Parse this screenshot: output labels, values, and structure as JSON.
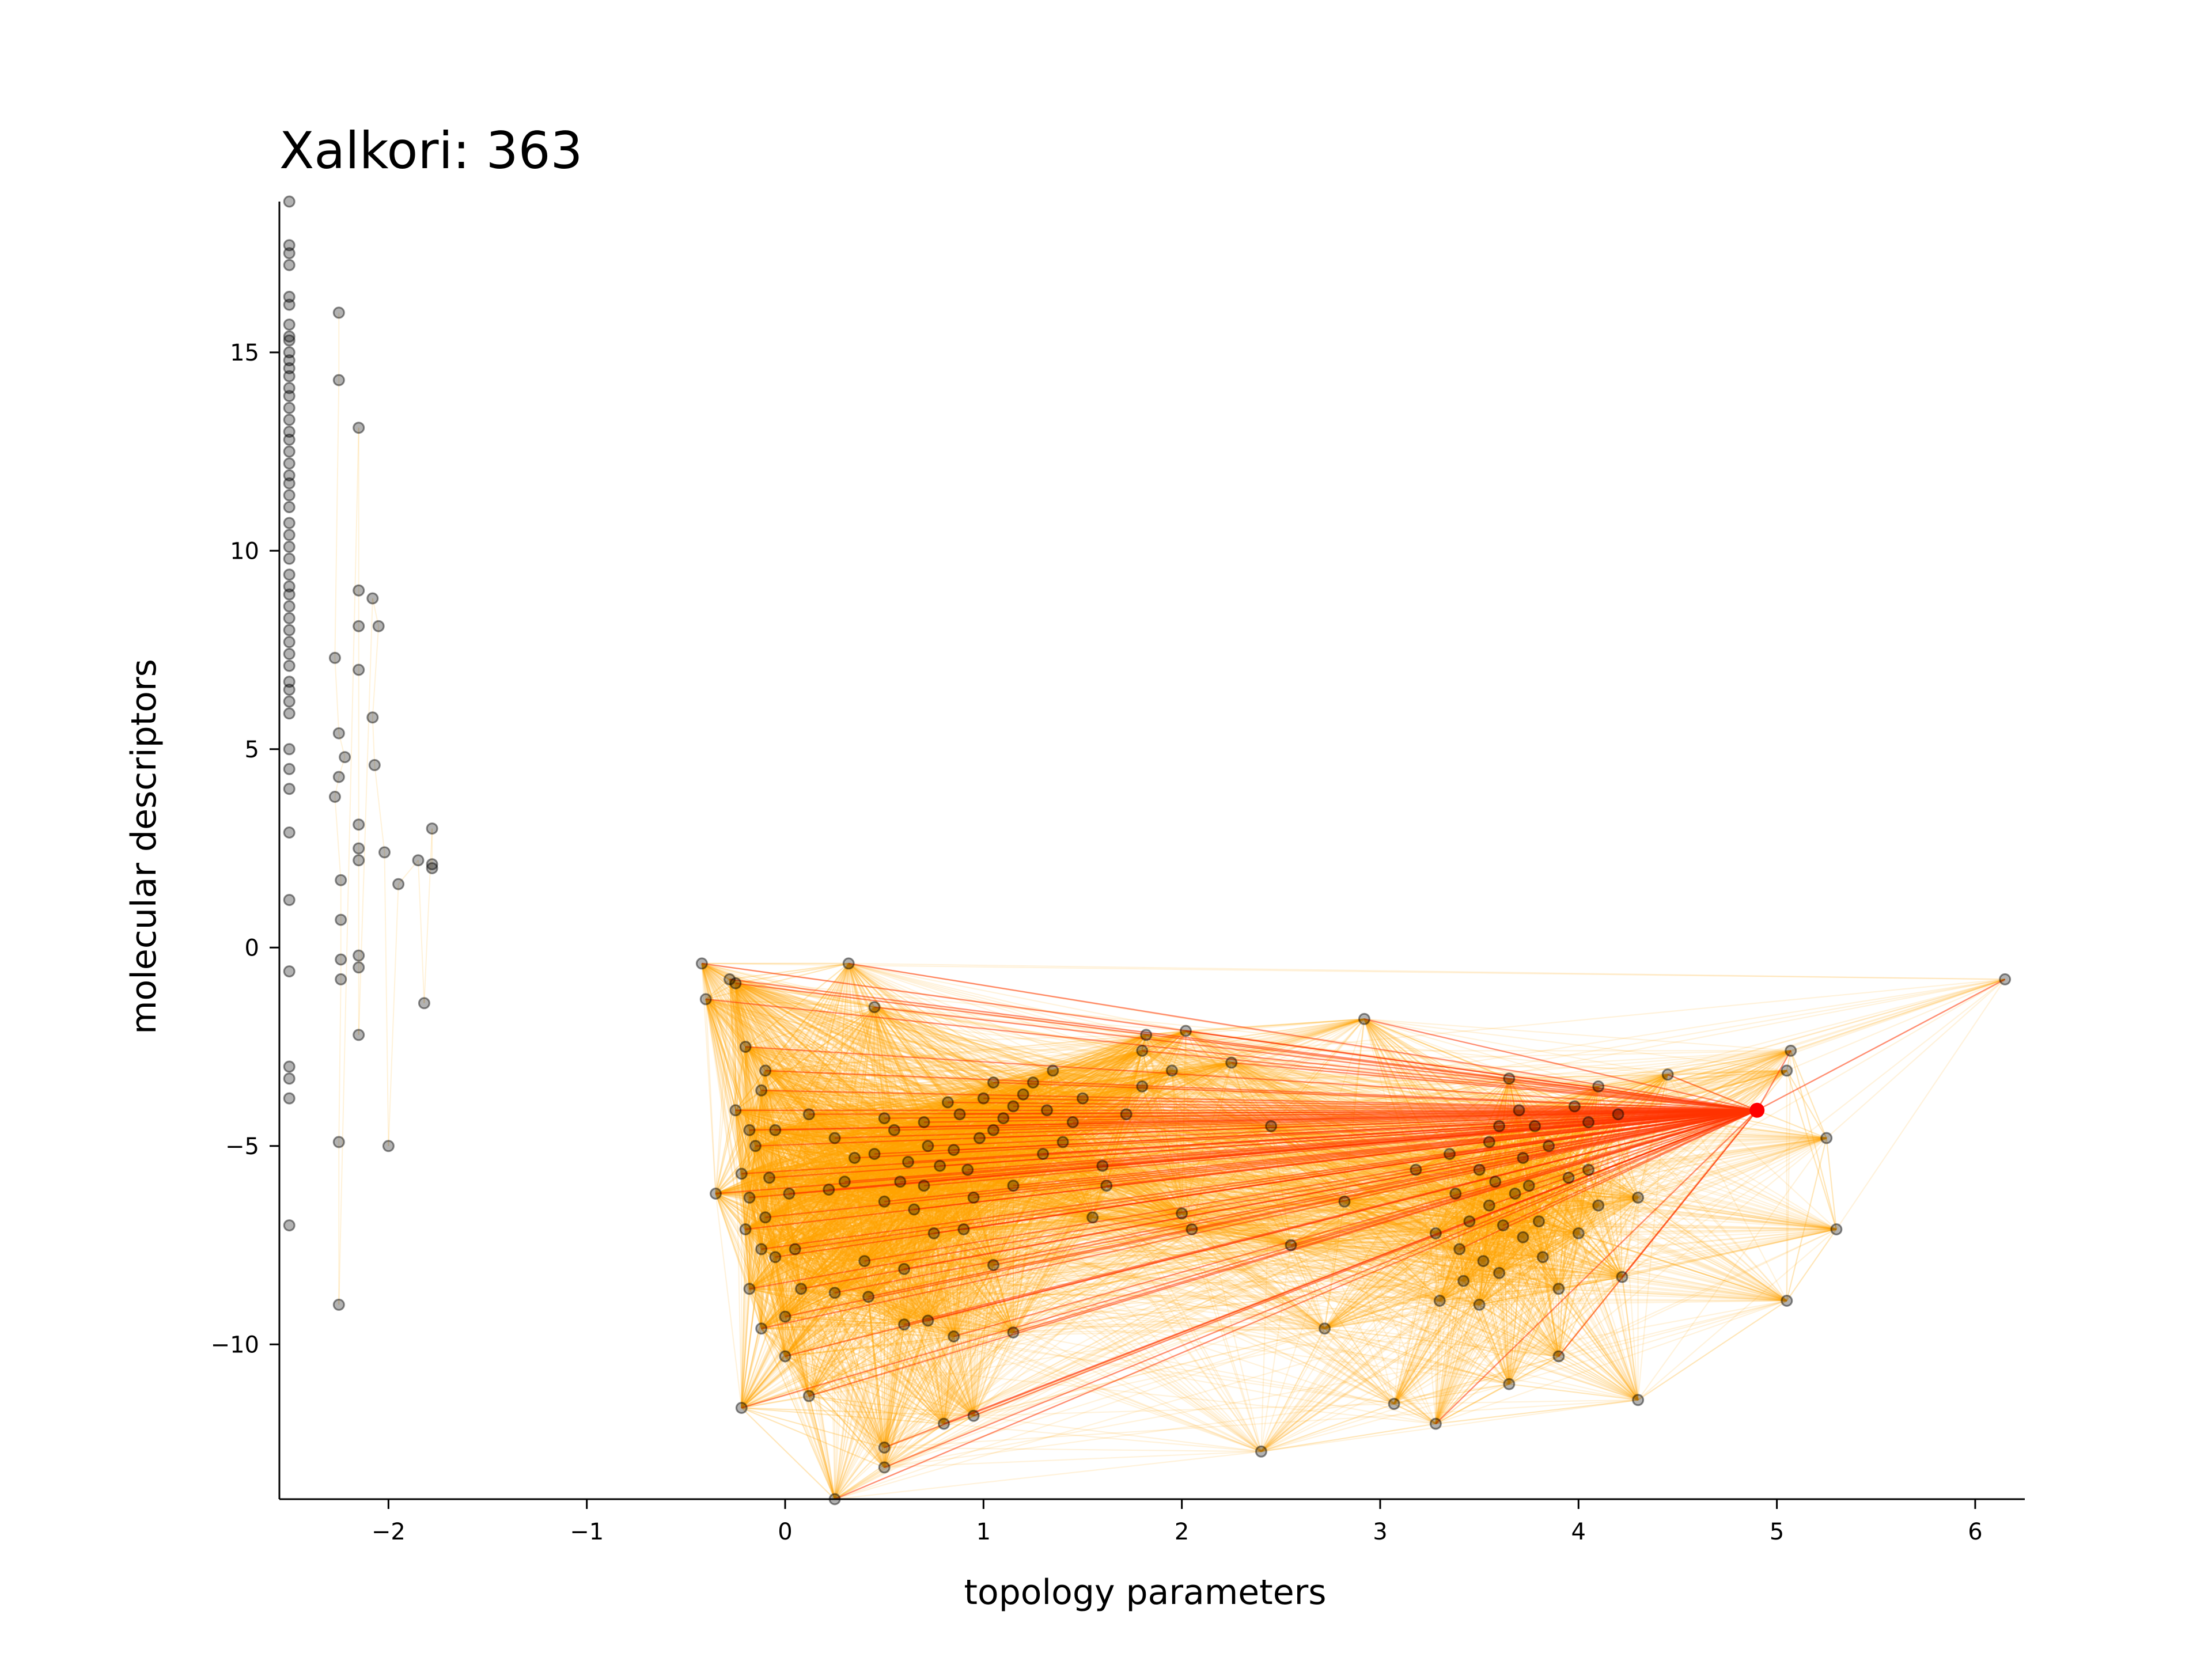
{
  "chart_data": {
    "type": "scatter",
    "title": "Xalkori: 363",
    "xlabel": "topology parameters",
    "ylabel": "molecular descriptors",
    "xlim": [
      -2.55,
      6.25
    ],
    "ylim": [
      -13.9,
      18.8
    ],
    "x_ticks": [
      -2,
      -1,
      0,
      1,
      2,
      3,
      4,
      5,
      6
    ],
    "x_tick_labels": [
      "−2",
      "−1",
      "0",
      "1",
      "2",
      "3",
      "4",
      "5",
      "6"
    ],
    "y_ticks": [
      -10,
      -5,
      0,
      5,
      10,
      15
    ],
    "y_tick_labels": [
      "−10",
      "−5",
      "0",
      "5",
      "10",
      "15"
    ],
    "grid": false,
    "colors": {
      "point": "#000000",
      "highlight": "#ff0000",
      "edge": "#ffa500",
      "highlight_edge": "#ff3300"
    },
    "highlight": {
      "x": 4.9,
      "y": -4.1
    },
    "series": [
      {
        "points": [
          [
            -2.5,
            18.8
          ],
          [
            -2.5,
            17.7
          ],
          [
            -2.5,
            17.5
          ],
          [
            -2.5,
            17.2
          ],
          [
            -2.5,
            16.4
          ],
          [
            -2.5,
            16.2
          ],
          [
            -2.5,
            15.7
          ],
          [
            -2.5,
            15.4
          ],
          [
            -2.5,
            15.3
          ],
          [
            -2.5,
            15.0
          ],
          [
            -2.5,
            14.8
          ],
          [
            -2.5,
            14.6
          ],
          [
            -2.5,
            14.4
          ],
          [
            -2.5,
            14.1
          ],
          [
            -2.5,
            13.9
          ],
          [
            -2.5,
            13.6
          ],
          [
            -2.5,
            13.3
          ],
          [
            -2.5,
            13.0
          ],
          [
            -2.5,
            12.8
          ],
          [
            -2.5,
            12.5
          ],
          [
            -2.5,
            12.2
          ],
          [
            -2.5,
            11.9
          ],
          [
            -2.5,
            11.7
          ],
          [
            -2.5,
            11.4
          ],
          [
            -2.5,
            11.1
          ],
          [
            -2.5,
            10.7
          ],
          [
            -2.5,
            10.4
          ],
          [
            -2.5,
            10.1
          ],
          [
            -2.5,
            9.8
          ],
          [
            -2.5,
            9.4
          ],
          [
            -2.5,
            9.1
          ],
          [
            -2.5,
            8.9
          ],
          [
            -2.5,
            8.6
          ],
          [
            -2.5,
            8.3
          ],
          [
            -2.5,
            8.0
          ],
          [
            -2.5,
            7.7
          ],
          [
            -2.5,
            7.4
          ],
          [
            -2.5,
            7.1
          ],
          [
            -2.5,
            6.7
          ],
          [
            -2.5,
            6.5
          ],
          [
            -2.5,
            6.2
          ],
          [
            -2.5,
            5.9
          ],
          [
            -2.5,
            5.0
          ],
          [
            -2.5,
            4.5
          ],
          [
            -2.5,
            4.0
          ],
          [
            -2.5,
            2.9
          ],
          [
            -2.5,
            1.2
          ],
          [
            -2.5,
            -0.6
          ],
          [
            -2.5,
            -3.0
          ],
          [
            -2.5,
            -3.3
          ],
          [
            -2.5,
            -3.8
          ],
          [
            -2.5,
            -7.0
          ],
          [
            -2.25,
            16.0
          ],
          [
            -2.25,
            14.3
          ],
          [
            -2.27,
            7.3
          ],
          [
            -2.25,
            5.4
          ],
          [
            -2.22,
            4.8
          ],
          [
            -2.25,
            4.3
          ],
          [
            -2.27,
            3.8
          ],
          [
            -2.24,
            1.7
          ],
          [
            -2.24,
            0.7
          ],
          [
            -2.24,
            -0.3
          ],
          [
            -2.24,
            -0.8
          ],
          [
            -2.25,
            -4.9
          ],
          [
            -2.25,
            -9.0
          ],
          [
            -2.15,
            13.1
          ],
          [
            -2.15,
            9.0
          ],
          [
            -2.15,
            8.1
          ],
          [
            -2.15,
            7.0
          ],
          [
            -2.15,
            3.1
          ],
          [
            -2.15,
            2.5
          ],
          [
            -2.15,
            2.2
          ],
          [
            -2.15,
            -0.2
          ],
          [
            -2.15,
            -0.5
          ],
          [
            -2.15,
            -2.2
          ],
          [
            -2.08,
            8.8
          ],
          [
            -2.05,
            8.1
          ],
          [
            -2.08,
            5.8
          ],
          [
            -2.07,
            4.6
          ],
          [
            -2.02,
            2.4
          ],
          [
            -2.0,
            -5.0
          ],
          [
            -1.95,
            1.6
          ],
          [
            -1.85,
            2.2
          ],
          [
            -1.82,
            -1.4
          ],
          [
            -1.78,
            3.0
          ],
          [
            -1.78,
            2.1
          ],
          [
            -1.78,
            2.0
          ],
          [
            6.15,
            -0.8
          ],
          [
            5.3,
            -7.1
          ],
          [
            5.25,
            -4.8
          ],
          [
            5.07,
            -2.6
          ],
          [
            5.05,
            -3.1
          ],
          [
            5.05,
            -8.9
          ],
          [
            4.45,
            -3.2
          ],
          [
            4.3,
            -11.4
          ],
          [
            4.3,
            -6.3
          ],
          [
            4.22,
            -8.3
          ],
          [
            4.2,
            -4.2
          ],
          [
            4.1,
            -3.5
          ],
          [
            4.05,
            -4.4
          ],
          [
            4.0,
            -7.2
          ],
          [
            3.95,
            -5.8
          ],
          [
            3.9,
            -10.3
          ],
          [
            3.8,
            -6.9
          ],
          [
            3.78,
            -4.5
          ],
          [
            3.72,
            -5.3
          ],
          [
            3.68,
            -6.2
          ],
          [
            3.65,
            -3.3
          ],
          [
            3.62,
            -7.0
          ],
          [
            3.6,
            -8.2
          ],
          [
            3.58,
            -5.9
          ],
          [
            3.55,
            -6.5
          ],
          [
            3.52,
            -7.9
          ],
          [
            3.5,
            -5.6
          ],
          [
            3.45,
            -6.9
          ],
          [
            3.42,
            -8.4
          ],
          [
            3.38,
            -6.2
          ],
          [
            3.35,
            -5.2
          ],
          [
            3.3,
            -8.9
          ],
          [
            3.28,
            -7.2
          ],
          [
            3.28,
            -12.0
          ],
          [
            3.18,
            -5.6
          ],
          [
            3.07,
            -11.5
          ],
          [
            2.92,
            -1.8
          ],
          [
            2.82,
            -6.4
          ],
          [
            2.72,
            -9.6
          ],
          [
            2.55,
            -7.5
          ],
          [
            2.4,
            -12.7
          ],
          [
            2.45,
            -4.5
          ],
          [
            2.25,
            -2.9
          ],
          [
            2.05,
            -7.1
          ],
          [
            2.0,
            -6.7
          ],
          [
            2.02,
            -2.1
          ],
          [
            1.95,
            -3.1
          ],
          [
            1.82,
            -2.2
          ],
          [
            1.8,
            -2.6
          ],
          [
            1.8,
            -3.5
          ],
          [
            1.72,
            -4.2
          ],
          [
            1.62,
            -6.0
          ],
          [
            1.55,
            -6.8
          ],
          [
            1.5,
            -3.8
          ],
          [
            1.45,
            -4.4
          ],
          [
            1.35,
            -3.1
          ],
          [
            1.32,
            -4.1
          ],
          [
            1.3,
            -5.2
          ],
          [
            1.25,
            -3.4
          ],
          [
            1.2,
            -3.7
          ],
          [
            1.15,
            -4.0
          ],
          [
            1.15,
            -6.0
          ],
          [
            1.1,
            -4.3
          ],
          [
            1.05,
            -4.6
          ],
          [
            1.05,
            -3.4
          ],
          [
            1.0,
            -3.8
          ],
          [
            0.98,
            -4.8
          ],
          [
            0.95,
            -6.3
          ],
          [
            0.92,
            -5.6
          ],
          [
            0.9,
            -7.1
          ],
          [
            0.88,
            -4.2
          ],
          [
            0.85,
            -5.1
          ],
          [
            0.82,
            -3.9
          ],
          [
            0.78,
            -5.5
          ],
          [
            0.75,
            -7.2
          ],
          [
            0.72,
            -5.0
          ],
          [
            0.7,
            -4.4
          ],
          [
            0.7,
            -6.0
          ],
          [
            0.65,
            -6.6
          ],
          [
            0.62,
            -5.4
          ],
          [
            0.6,
            -8.1
          ],
          [
            0.58,
            -5.9
          ],
          [
            0.55,
            -4.6
          ],
          [
            0.5,
            -4.3
          ],
          [
            0.5,
            -6.4
          ],
          [
            0.45,
            -5.2
          ],
          [
            0.4,
            -7.9
          ],
          [
            0.35,
            -5.3
          ],
          [
            0.32,
            -0.4
          ],
          [
            0.3,
            -5.9
          ],
          [
            0.25,
            -4.8
          ],
          [
            0.25,
            -8.7
          ],
          [
            0.22,
            -6.1
          ],
          [
            0.12,
            -4.2
          ],
          [
            0.12,
            -11.3
          ],
          [
            0.08,
            -8.6
          ],
          [
            0.05,
            -7.6
          ],
          [
            0.02,
            -6.2
          ],
          [
            0.0,
            -9.3
          ],
          [
            0.0,
            -10.3
          ],
          [
            -0.05,
            -4.6
          ],
          [
            -0.05,
            -7.8
          ],
          [
            -0.08,
            -5.8
          ],
          [
            -0.1,
            -3.1
          ],
          [
            -0.1,
            -6.8
          ],
          [
            -0.12,
            -3.6
          ],
          [
            -0.12,
            -7.6
          ],
          [
            -0.12,
            -9.6
          ],
          [
            -0.15,
            -5.0
          ],
          [
            -0.18,
            -4.6
          ],
          [
            -0.18,
            -6.3
          ],
          [
            -0.18,
            -8.6
          ],
          [
            -0.2,
            -2.5
          ],
          [
            -0.2,
            -7.1
          ],
          [
            -0.22,
            -5.7
          ],
          [
            -0.22,
            -11.6
          ],
          [
            -0.25,
            -4.1
          ],
          [
            -0.25,
            -0.9
          ],
          [
            -0.28,
            -0.8
          ],
          [
            -0.35,
            -6.2
          ],
          [
            -0.4,
            -1.3
          ],
          [
            -0.42,
            -0.4
          ],
          [
            0.45,
            -1.5
          ],
          [
            0.5,
            -12.6
          ],
          [
            0.5,
            -13.1
          ],
          [
            0.72,
            -9.4
          ],
          [
            0.8,
            -12.0
          ],
          [
            0.95,
            -11.8
          ],
          [
            1.15,
            -9.7
          ],
          [
            0.25,
            -13.9
          ],
          [
            0.42,
            -8.8
          ],
          [
            0.6,
            -9.5
          ],
          [
            0.85,
            -9.8
          ],
          [
            1.05,
            -8.0
          ],
          [
            1.4,
            -4.9
          ],
          [
            1.6,
            -5.5
          ],
          [
            3.65,
            -11.0
          ],
          [
            3.72,
            -7.3
          ],
          [
            3.85,
            -5.0
          ],
          [
            3.9,
            -8.6
          ],
          [
            4.05,
            -5.6
          ],
          [
            3.98,
            -4.0
          ],
          [
            3.7,
            -4.1
          ],
          [
            3.55,
            -4.9
          ],
          [
            3.4,
            -7.6
          ],
          [
            3.5,
            -9.0
          ],
          [
            3.6,
            -4.5
          ],
          [
            3.75,
            -6.0
          ],
          [
            3.82,
            -7.8
          ],
          [
            4.1,
            -6.5
          ]
        ]
      }
    ]
  }
}
